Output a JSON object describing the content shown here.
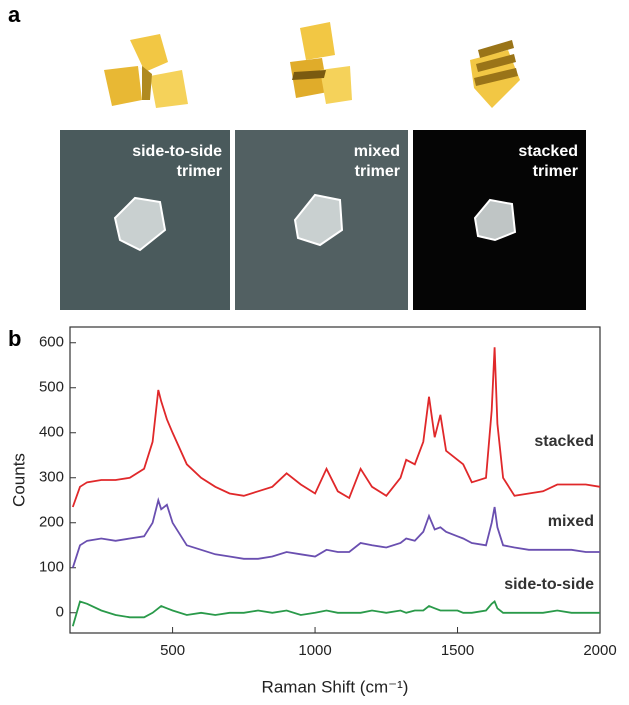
{
  "panel_a": {
    "label": "a",
    "images": [
      {
        "lines": [
          "side-to-side",
          "trimer"
        ]
      },
      {
        "lines": [
          "mixed",
          "trimer"
        ]
      },
      {
        "lines": [
          "stacked",
          "trimer"
        ]
      }
    ]
  },
  "chart_data": {
    "type": "line",
    "panel_label": "b",
    "xlabel": "Raman Shift (cm⁻¹)",
    "ylabel": "Counts",
    "x": [
      150,
      175,
      200,
      250,
      300,
      350,
      400,
      430,
      450,
      460,
      480,
      500,
      550,
      600,
      650,
      700,
      750,
      800,
      850,
      900,
      950,
      1000,
      1040,
      1080,
      1120,
      1160,
      1200,
      1250,
      1300,
      1320,
      1350,
      1380,
      1400,
      1420,
      1440,
      1460,
      1500,
      1520,
      1550,
      1600,
      1620,
      1630,
      1640,
      1660,
      1700,
      1750,
      1800,
      1850,
      1900,
      1950,
      2000
    ],
    "series": [
      {
        "name": "stacked",
        "color": "#e0282a",
        "values": [
          235,
          280,
          290,
          295,
          295,
          300,
          320,
          380,
          495,
          470,
          430,
          400,
          330,
          300,
          280,
          265,
          260,
          270,
          280,
          310,
          285,
          265,
          320,
          270,
          255,
          320,
          280,
          260,
          300,
          340,
          330,
          380,
          480,
          390,
          440,
          360,
          340,
          330,
          290,
          300,
          450,
          590,
          420,
          300,
          260,
          265,
          270,
          285,
          285,
          285,
          280
        ]
      },
      {
        "name": "mixed",
        "color": "#6a4fb0",
        "values": [
          100,
          150,
          160,
          165,
          160,
          165,
          170,
          200,
          250,
          230,
          240,
          200,
          150,
          140,
          130,
          125,
          120,
          120,
          125,
          135,
          130,
          125,
          140,
          135,
          135,
          155,
          150,
          145,
          155,
          165,
          160,
          180,
          215,
          185,
          190,
          180,
          170,
          165,
          155,
          150,
          200,
          235,
          190,
          150,
          145,
          140,
          140,
          140,
          140,
          135,
          135
        ]
      },
      {
        "name": "side-to-side",
        "color": "#2a9a4a",
        "values": [
          -30,
          25,
          20,
          5,
          -5,
          -10,
          -10,
          0,
          10,
          15,
          10,
          5,
          -5,
          0,
          -5,
          0,
          0,
          5,
          0,
          5,
          -5,
          0,
          5,
          0,
          0,
          0,
          5,
          0,
          5,
          0,
          5,
          5,
          15,
          10,
          5,
          5,
          5,
          0,
          0,
          5,
          20,
          25,
          10,
          0,
          0,
          0,
          0,
          5,
          0,
          0,
          0
        ]
      }
    ],
    "xlim": [
      140,
      2000
    ],
    "ylim": [
      -45,
      635
    ],
    "xticks": [
      500,
      1000,
      1500,
      2000
    ],
    "yticks": [
      0,
      100,
      200,
      300,
      400,
      500,
      600
    ]
  }
}
